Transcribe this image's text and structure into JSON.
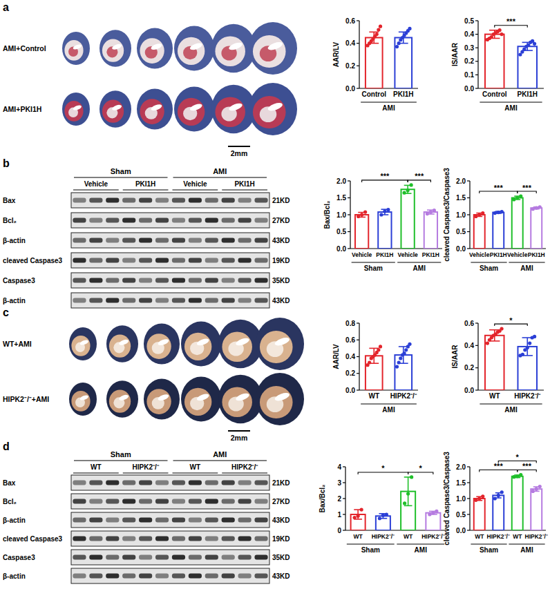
{
  "chart_data": [
    {
      "type": "bar",
      "ylabel": "AAR/LV",
      "categories": [
        "Control",
        "PKI1H"
      ],
      "groups": [
        {
          "label": "AMI",
          "from": 0,
          "to": 1
        }
      ],
      "values": [
        0.45,
        0.45
      ],
      "errors": [
        0.05,
        0.05
      ],
      "points": [
        [
          0.38,
          0.4,
          0.42,
          0.44,
          0.46,
          0.48,
          0.52,
          0.55
        ],
        [
          0.37,
          0.4,
          0.43,
          0.45,
          0.47,
          0.49,
          0.51,
          0.53
        ]
      ],
      "colors": [
        "#e3242b",
        "#2b3fd6"
      ],
      "ylim": [
        0,
        0.6
      ],
      "yticks": [
        {
          "value": 0,
          "label": "0.0"
        },
        0.2,
        0.4,
        0.6
      ],
      "significance": []
    },
    {
      "type": "bar",
      "ylabel": "IS/AAR",
      "categories": [
        "Control",
        "PKI1H"
      ],
      "groups": [
        {
          "label": "AMI",
          "from": 0,
          "to": 1
        }
      ],
      "values": [
        0.4,
        0.31
      ],
      "errors": [
        0.03,
        0.03
      ],
      "points": [
        [
          0.36,
          0.37,
          0.38,
          0.4,
          0.41,
          0.42,
          0.43,
          0.4
        ],
        [
          0.25,
          0.27,
          0.29,
          0.31,
          0.32,
          0.34,
          0.35,
          0.33
        ]
      ],
      "colors": [
        "#e3242b",
        "#2b3fd6"
      ],
      "ylim": [
        0,
        0.5
      ],
      "yticks": [
        {
          "value": 0,
          "label": "0.0"
        },
        0.1,
        0.2,
        0.3,
        0.4,
        0.5
      ],
      "significance": [
        {
          "from": 0,
          "to": 1,
          "label": "***"
        }
      ]
    },
    {
      "type": "bar",
      "ylabel": "Bax/Bcl₂",
      "categories": [
        "Vehicle",
        "PKI1H",
        "Vehicle",
        "PKI1H"
      ],
      "groups": [
        {
          "label": "Sham",
          "from": 0,
          "to": 1
        },
        {
          "label": "AMI",
          "from": 2,
          "to": 3
        }
      ],
      "values": [
        1.0,
        1.08,
        1.75,
        1.08
      ],
      "errors": [
        0.07,
        0.08,
        0.12,
        0.06
      ],
      "points": [
        [
          0.95,
          1.0,
          1.08
        ],
        [
          1.0,
          1.1,
          1.15
        ],
        [
          1.65,
          1.72,
          1.88
        ],
        [
          1.03,
          1.08,
          1.13
        ]
      ],
      "colors": [
        "#e3242b",
        "#2b3fd6",
        "#1fbf2a",
        "#b57be0"
      ],
      "ylim": [
        0,
        2
      ],
      "yticks": [
        {
          "value": 0,
          "label": "0.0"
        },
        0.5,
        {
          "value": 1,
          "label": "1.0"
        },
        1.5,
        {
          "value": 2,
          "label": "2.0"
        }
      ],
      "significance": [
        {
          "from": 0,
          "to": 2,
          "label": "***"
        },
        {
          "from": 2,
          "to": 3,
          "label": "***"
        }
      ]
    },
    {
      "type": "bar",
      "ylabel": "cleaved Caspase3/Caspase3",
      "categories": [
        "Vehicle",
        "PKI1H",
        "Vehicle",
        "PKI1H"
      ],
      "groups": [
        {
          "label": "Sham",
          "from": 0,
          "to": 1
        },
        {
          "label": "AMI",
          "from": 2,
          "to": 3
        }
      ],
      "values": [
        1.0,
        1.07,
        1.5,
        1.2
      ],
      "errors": [
        0.05,
        0.03,
        0.05,
        0.03
      ],
      "points": [
        [
          0.95,
          1.0,
          1.05
        ],
        [
          1.05,
          1.07,
          1.09
        ],
        [
          1.45,
          1.5,
          1.55
        ],
        [
          1.17,
          1.2,
          1.23
        ]
      ],
      "colors": [
        "#e3242b",
        "#2b3fd6",
        "#1fbf2a",
        "#b57be0"
      ],
      "ylim": [
        0,
        2
      ],
      "yticks": [
        {
          "value": 0,
          "label": "0.0"
        },
        0.5,
        {
          "value": 1,
          "label": "1.0"
        },
        1.5,
        {
          "value": 2,
          "label": "2.0"
        }
      ],
      "significance": [
        {
          "from": 0,
          "to": 2,
          "label": "***"
        },
        {
          "from": 2,
          "to": 3,
          "label": "***"
        }
      ]
    },
    {
      "type": "bar",
      "ylabel": "AAR/LV",
      "categories": [
        "WT",
        "HIPK2⁻/⁻"
      ],
      "groups": [
        {
          "label": "AMI",
          "from": 0,
          "to": 1
        }
      ],
      "values": [
        0.41,
        0.42
      ],
      "errors": [
        0.09,
        0.1
      ],
      "points": [
        [
          0.3,
          0.33,
          0.38,
          0.4,
          0.42,
          0.45,
          0.48,
          0.52
        ],
        [
          0.28,
          0.33,
          0.38,
          0.42,
          0.44,
          0.48,
          0.52,
          0.55
        ]
      ],
      "colors": [
        "#e3242b",
        "#2b3fd6"
      ],
      "ylim": [
        0,
        0.8
      ],
      "yticks": [
        {
          "value": 0,
          "label": "0.0"
        },
        0.2,
        0.4,
        0.6,
        0.8
      ],
      "significance": []
    },
    {
      "type": "bar",
      "ylabel": "IS/AAR",
      "categories": [
        "WT",
        "HIPK2⁻/⁻"
      ],
      "groups": [
        {
          "label": "AMI",
          "from": 0,
          "to": 1
        }
      ],
      "values": [
        0.49,
        0.39
      ],
      "errors": [
        0.05,
        0.08
      ],
      "points": [
        [
          0.42,
          0.45,
          0.47,
          0.49,
          0.5,
          0.52,
          0.53,
          0.55
        ],
        [
          0.31,
          0.32,
          0.36,
          0.38,
          0.42,
          0.47,
          0.48
        ]
      ],
      "colors": [
        "#e3242b",
        "#2b3fd6"
      ],
      "ylim": [
        0,
        0.6
      ],
      "yticks": [
        {
          "value": 0,
          "label": "0.0"
        },
        0.2,
        0.4,
        0.6
      ],
      "significance": [
        {
          "from": 0,
          "to": 1,
          "label": "*"
        }
      ]
    },
    {
      "type": "bar",
      "ylabel": "Bax/Bcl₂",
      "categories": [
        "WT",
        "HIPK2⁻/⁻",
        "WT",
        "HIPK2⁻/⁻"
      ],
      "groups": [
        {
          "label": "Sham",
          "from": 0,
          "to": 1
        },
        {
          "label": "AMI",
          "from": 2,
          "to": 3
        }
      ],
      "values": [
        1.0,
        0.9,
        2.45,
        1.1
      ],
      "errors": [
        0.3,
        0.15,
        0.9,
        0.1
      ],
      "points": [
        [
          0.8,
          0.9,
          1.3
        ],
        [
          0.75,
          0.95,
          1.0
        ],
        [
          1.7,
          2.3,
          3.35
        ],
        [
          1.0,
          1.1,
          1.2
        ]
      ],
      "colors": [
        "#e3242b",
        "#2b3fd6",
        "#1fbf2a",
        "#b57be0"
      ],
      "ylim": [
        0,
        4
      ],
      "yticks": [
        0,
        1,
        2,
        3,
        4
      ],
      "significance": [
        {
          "from": 0,
          "to": 2,
          "label": "*"
        },
        {
          "from": 2,
          "to": 3,
          "label": "*"
        }
      ]
    },
    {
      "type": "bar",
      "ylabel": "cleaved Caspase3/Caspase3",
      "categories": [
        "WT",
        "HIPK2⁻/⁻",
        "WT",
        "HIPK2⁻/⁻"
      ],
      "groups": [
        {
          "label": "Sham",
          "from": 0,
          "to": 1
        },
        {
          "label": "AMI",
          "from": 2,
          "to": 3
        }
      ],
      "values": [
        1.0,
        1.1,
        1.7,
        1.3
      ],
      "errors": [
        0.06,
        0.08,
        0.04,
        0.07
      ],
      "points": [
        [
          0.95,
          1.0,
          1.07
        ],
        [
          1.0,
          1.1,
          1.2
        ],
        [
          1.68,
          1.7,
          1.75
        ],
        [
          1.23,
          1.3,
          1.38
        ]
      ],
      "colors": [
        "#e3242b",
        "#2b3fd6",
        "#1fbf2a",
        "#b57be0"
      ],
      "ylim": [
        0,
        2
      ],
      "yticks": [
        {
          "value": 0,
          "label": "0.0"
        },
        0.5,
        {
          "value": 1,
          "label": "1.0"
        },
        1.5,
        {
          "value": 2,
          "label": "2.0"
        }
      ],
      "significance": [
        {
          "from": 0,
          "to": 2,
          "label": "***"
        },
        {
          "from": 2,
          "to": 3,
          "label": "***"
        },
        {
          "from": 1,
          "to": 3,
          "label": "*"
        }
      ]
    }
  ],
  "figure": {
    "panels": [
      {
        "letter": "a",
        "rows": [
          "AMI+Control",
          "AMI+PKI1H"
        ],
        "scale_bar": "2mm"
      },
      {
        "letter": "b",
        "groups": [
          "Sham",
          "AMI"
        ],
        "lanes": [
          "Vehicle",
          "PKI1H",
          "Vehicle",
          "PKI1H"
        ],
        "rows": [
          {
            "label": "Bax",
            "size": "21KD"
          },
          {
            "label": "Bcl₂",
            "size": "27KD"
          },
          {
            "label": "β-actin",
            "size": "43KD"
          },
          {
            "label": "cleaved Caspase3",
            "size": "19KD"
          },
          {
            "label": "Caspase3",
            "size": "35KD"
          },
          {
            "label": "β-actin",
            "size": "43KD"
          }
        ]
      },
      {
        "letter": "c",
        "rows": [
          "WT+AMI",
          "HIPK2⁻/⁻+AMI"
        ],
        "scale_bar": "2mm"
      },
      {
        "letter": "d",
        "groups": [
          "Sham",
          "AMI"
        ],
        "lanes": [
          "WT",
          "HIPK2⁻/⁻",
          "WT",
          "HIPK2⁻/⁻"
        ],
        "rows": [
          {
            "label": "Bax",
            "size": "21KD"
          },
          {
            "label": "Bcl₂",
            "size": "27KD"
          },
          {
            "label": "β-actin",
            "size": "43KD"
          },
          {
            "label": "cleaved Caspase3",
            "size": "19KD"
          },
          {
            "label": "Caspase3",
            "size": "35KD"
          },
          {
            "label": "β-actin",
            "size": "43KD"
          }
        ]
      }
    ]
  }
}
